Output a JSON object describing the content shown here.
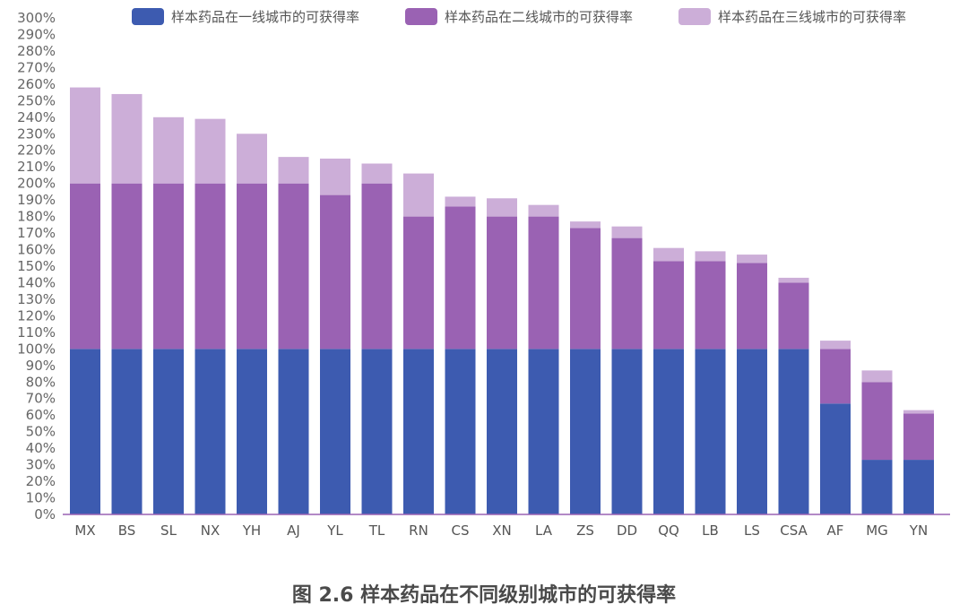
{
  "caption": "图 2.6 样本药品在不同级别城市的可获得率",
  "colors": {
    "tier1": "#3d5bb0",
    "tier2": "#9a62b3",
    "tier3": "#ccaed8",
    "axis": "#9a62b3",
    "text": "#666666"
  },
  "chart_data": {
    "type": "bar",
    "stacked": true,
    "categories": [
      "MX",
      "BS",
      "SL",
      "NX",
      "YH",
      "AJ",
      "YL",
      "TL",
      "RN",
      "CS",
      "XN",
      "LA",
      "ZS",
      "DD",
      "QQ",
      "LB",
      "LS",
      "CSA",
      "AF",
      "MG",
      "YN"
    ],
    "series": [
      {
        "name": "样本药品在一线城市的可获得率",
        "values": [
          100,
          100,
          100,
          100,
          100,
          100,
          100,
          100,
          100,
          100,
          100,
          100,
          100,
          100,
          100,
          100,
          100,
          100,
          67,
          33,
          33
        ]
      },
      {
        "name": "样本药品在二线城市的可获得率",
        "values": [
          100,
          100,
          100,
          100,
          100,
          100,
          93,
          100,
          80,
          86,
          80,
          80,
          73,
          67,
          53,
          53,
          52,
          40,
          33,
          47,
          28
        ]
      },
      {
        "name": "样本药品在三线城市的可获得率",
        "values": [
          58,
          54,
          40,
          39,
          30,
          16,
          22,
          12,
          26,
          6,
          11,
          7,
          4,
          7,
          8,
          6,
          5,
          3,
          5,
          7,
          2
        ]
      }
    ],
    "ylim": [
      0,
      300
    ],
    "yticks": [
      "0%",
      "10%",
      "20%",
      "30%",
      "40%",
      "50%",
      "60%",
      "70%",
      "80%",
      "90%",
      "100%",
      "110%",
      "120%",
      "130%",
      "140%",
      "150%",
      "160%",
      "170%",
      "180%",
      "190%",
      "200%",
      "210%",
      "220%",
      "230%",
      "240%",
      "250%",
      "260%",
      "270%",
      "280%",
      "290%",
      "300%"
    ],
    "legend_position": "top",
    "grid": false
  }
}
